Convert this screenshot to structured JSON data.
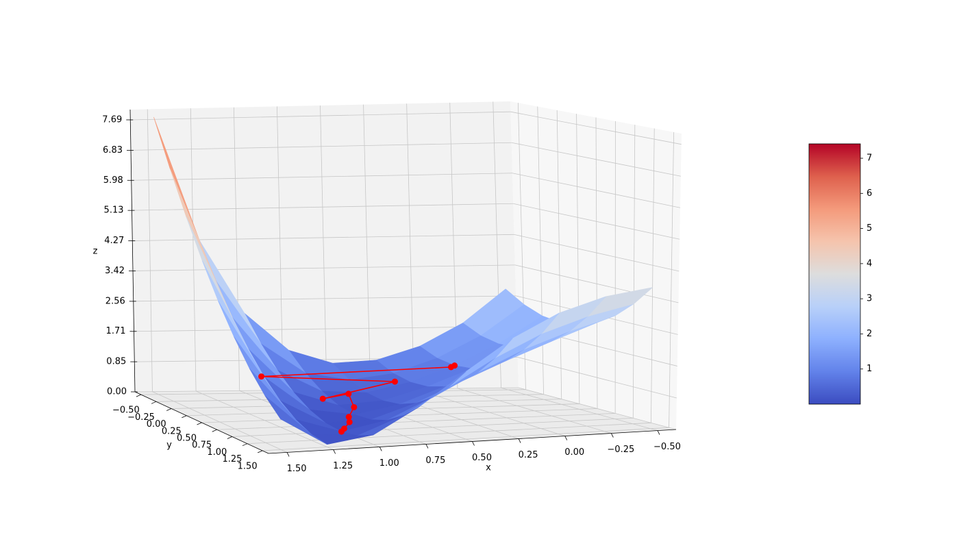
{
  "chart_data": {
    "type": "surface3d",
    "xlabel": "x",
    "ylabel": "y",
    "zlabel": "z",
    "xlim": [
      -0.6,
      1.6
    ],
    "ylim": [
      -0.6,
      1.6
    ],
    "zlim": [
      0,
      7.98
    ],
    "xticks": [
      {
        "value": -0.5,
        "label": "−0.50"
      },
      {
        "value": -0.25,
        "label": "−0.25"
      },
      {
        "value": 0,
        "label": "0.00"
      },
      0.25,
      {
        "value": 0.5,
        "label": "0.50"
      },
      0.75,
      {
        "value": 1,
        "label": "1.00"
      },
      1.25,
      {
        "value": 1.5,
        "label": "1.50"
      }
    ],
    "yticks": [
      {
        "value": -0.5,
        "label": "−0.50"
      },
      {
        "value": -0.25,
        "label": "−0.25"
      },
      {
        "value": 0,
        "label": "0.00"
      },
      0.25,
      {
        "value": 0.5,
        "label": "0.50"
      },
      0.75,
      {
        "value": 1,
        "label": "1.00"
      },
      1.25,
      {
        "value": 1.5,
        "label": "1.50"
      }
    ],
    "zticks": [
      {
        "value": 0,
        "label": "0.00"
      },
      0.85,
      1.71,
      2.56,
      3.42,
      4.27,
      5.13,
      5.98,
      6.83,
      7.69
    ],
    "grid": true,
    "surface": {
      "colormap": "coolwarm",
      "x": [
        -0.5,
        -0.25,
        0,
        0.25,
        0.5,
        0.75,
        1,
        1.25,
        1.5
      ],
      "y": [
        -0.5,
        -0.25,
        0,
        0.25,
        0.5,
        0.75,
        1,
        1.25,
        1.5
      ],
      "z": [
        [
          2.81,
          1.88,
          1.25,
          0.88,
          0.81,
          1.19,
          2.25,
          4.32,
          7.81
        ],
        [
          2.5,
          1.66,
          1.06,
          0.66,
          0.5,
          0.72,
          1.56,
          3.35,
          6.5
        ],
        [
          2.31,
          1.57,
          1,
          0.57,
          0.31,
          0.38,
          1,
          2.5,
          5.31
        ],
        [
          2.25,
          1.6,
          1.06,
          0.6,
          0.25,
          0.16,
          0.56,
          1.79,
          4.25
        ],
        [
          2.31,
          1.75,
          1.25,
          0.75,
          0.31,
          0.07,
          0.25,
          1.19,
          3.31
        ],
        [
          2.5,
          2.04,
          1.56,
          1.04,
          0.5,
          0.1,
          0.06,
          0.72,
          2.5
        ],
        [
          2.81,
          2.44,
          2,
          1.44,
          0.81,
          0.25,
          0,
          0.38,
          1.81
        ],
        [
          3.25,
          2.97,
          2.56,
          1.97,
          1.25,
          0.54,
          0.06,
          0.16,
          1.25
        ],
        [
          3.81,
          3.63,
          3.25,
          2.63,
          1.81,
          0.94,
          0.25,
          0.07,
          0.81
        ]
      ]
    },
    "clim": [
      0,
      7.41
    ],
    "colorbar_ticks": [
      1,
      2,
      3,
      4,
      5,
      6,
      7
    ],
    "path": {
      "color": "#ff0000",
      "x": [
        0,
        0.02,
        1.3,
        0.3,
        0.8,
        0.6,
        0.68,
        0.8,
        0.85,
        0.95,
        1
      ],
      "y": [
        0,
        0,
        0.6,
        -0.1,
        0.15,
        0,
        0.3,
        0.55,
        0.7,
        0.9,
        1
      ],
      "z": [
        1,
        0.96,
        1.28,
        0.53,
        0.28,
        0.29,
        0.13,
        0.05,
        0.02,
        0,
        0
      ]
    }
  }
}
